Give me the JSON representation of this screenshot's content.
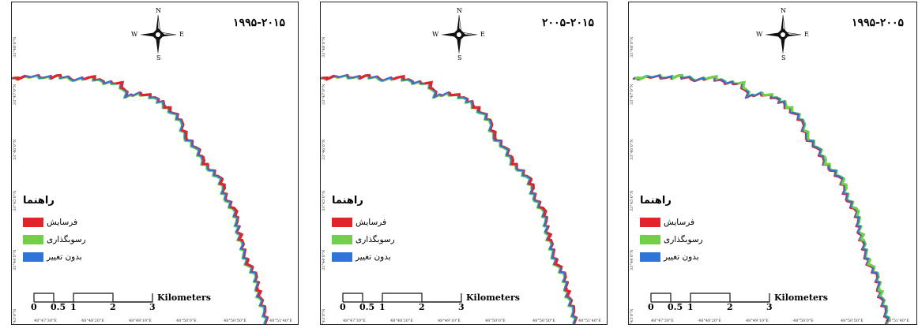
{
  "colors": {
    "erosion": "#e0242a",
    "deposition": "#6fd146",
    "nochange": "#2f74d8"
  },
  "legend": {
    "title": "راهنما",
    "items": [
      {
        "key": "erosion",
        "label": "فرسایش"
      },
      {
        "key": "deposition",
        "label": "رسوبگذاری"
      },
      {
        "key": "nochange",
        "label": "بدون تغییر"
      }
    ]
  },
  "compass": {
    "n": "N",
    "s": "S",
    "e": "E",
    "w": "W"
  },
  "scalebar": {
    "ticks": [
      "0",
      "0.5",
      "1",
      "2",
      "3"
    ],
    "unit": "Kilometers"
  },
  "panels": [
    {
      "period": "۱۹۹۵-۲۰۱۵",
      "dominant": "erosion"
    },
    {
      "period": "۲۰۰۵-۲۰۱۵",
      "dominant": "erosion"
    },
    {
      "period": "۱۹۹۵-۲۰۰۵",
      "dominant": "deposition"
    }
  ],
  "coords": {
    "lat": [
      "33°48'0\"N",
      "33°47'0\"N",
      "33°46'0\"N",
      "33°45'0\"N",
      "33°44'0\"N",
      "33°43'0\"N"
    ],
    "lon": [
      "48°47'30\"E",
      "48°48'20\"E",
      "48°49'10\"E",
      "48°50'0\"E",
      "48°50'50\"E",
      "48°51'40\"E"
    ]
  }
}
